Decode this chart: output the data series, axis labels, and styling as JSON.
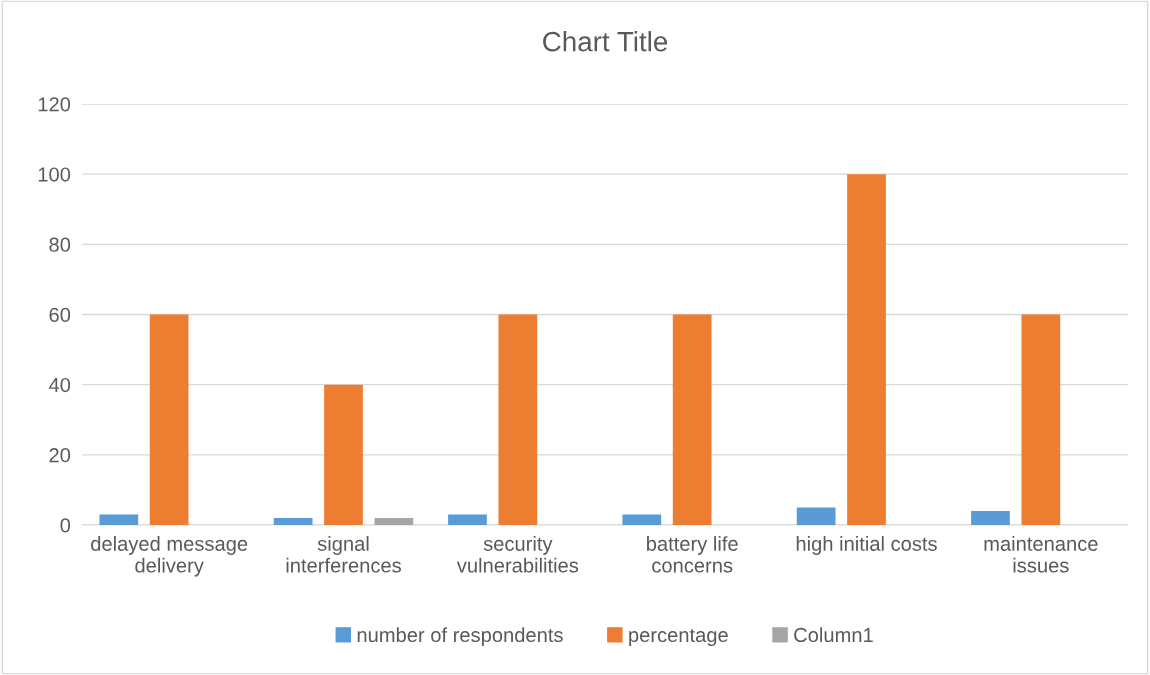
{
  "chart_data": {
    "type": "bar",
    "title": "Chart Title",
    "categories": [
      "delayed message\ndelivery",
      "signal\ninterferences",
      "security\nvulnerabilities",
      "battery life\nconcerns",
      "high initial costs",
      "maintenance\nissues"
    ],
    "series": [
      {
        "name": "number of respondents",
        "color": "#5b9bd5",
        "values": [
          3,
          2,
          3,
          3,
          5,
          4
        ]
      },
      {
        "name": "percentage",
        "color": "#ed7d31",
        "values": [
          60,
          40,
          60,
          60,
          100,
          60
        ]
      },
      {
        "name": "Column1",
        "color": "#a5a5a5",
        "values": [
          null,
          2,
          null,
          null,
          null,
          null
        ]
      }
    ],
    "ylim": [
      0,
      120
    ],
    "yticks": [
      0,
      20,
      40,
      60,
      80,
      100,
      120
    ],
    "grid": "y",
    "legend": "bottom"
  }
}
